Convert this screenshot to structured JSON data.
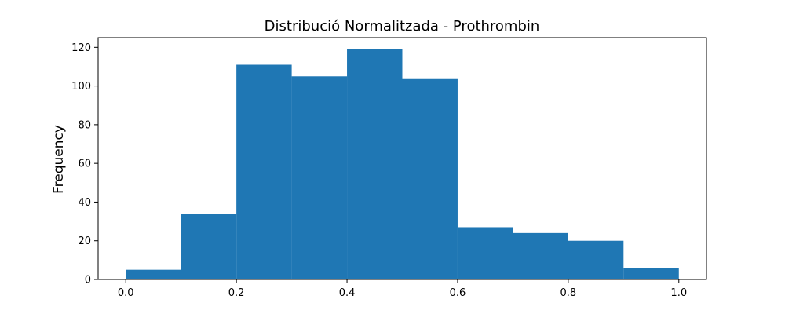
{
  "chart_data": {
    "type": "histogram",
    "title": "Distribució Normalitzada - Prothrombin",
    "xlabel": "",
    "ylabel": "Frequency",
    "bin_edges": [
      0.0,
      0.1,
      0.2,
      0.3,
      0.4,
      0.5,
      0.6,
      0.7,
      0.8,
      0.9,
      1.0
    ],
    "values": [
      5,
      34,
      111,
      105,
      119,
      104,
      27,
      24,
      20,
      6
    ],
    "xlim": [
      -0.05,
      1.05
    ],
    "ylim": [
      0,
      125
    ],
    "xticks": [
      0.0,
      0.2,
      0.4,
      0.6,
      0.8,
      1.0
    ],
    "xtick_labels": [
      "0.0",
      "0.2",
      "0.4",
      "0.6",
      "0.8",
      "1.0"
    ],
    "yticks": [
      0,
      20,
      40,
      60,
      80,
      100,
      120
    ],
    "ytick_labels": [
      "0",
      "20",
      "40",
      "60",
      "80",
      "100",
      "120"
    ],
    "bar_color": "#1f77b4",
    "grid": false,
    "legend": "none"
  }
}
